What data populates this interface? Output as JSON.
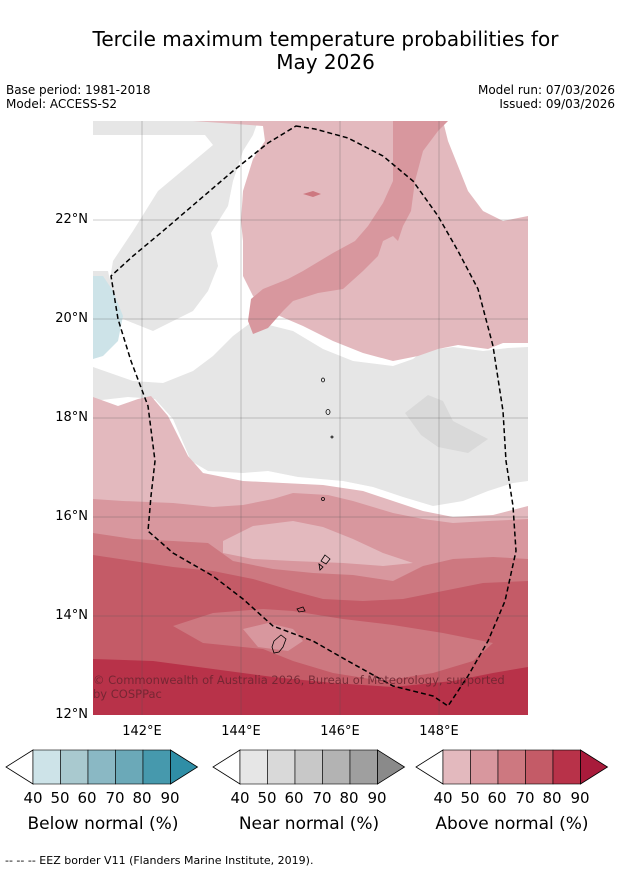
{
  "title": "Tercile maximum temperature probabilities for May 2026",
  "title_line1": "Tercile maximum temperature probabilities for",
  "title_line2": "May 2026",
  "base_period": "Base period: 1981-2018",
  "model": "Model: ACCESS-S2",
  "model_run": "Model run: 07/03/2026",
  "issued": "Issued: 09/03/2026",
  "copyright_line1": "© Commonwealth of Australia 2026, Bureau of Meteorology, supported",
  "copyright_line2": "by COSPPac",
  "lat_ticks": [
    "22°N",
    "20°N",
    "18°N",
    "16°N",
    "14°N",
    "12°N"
  ],
  "lon_ticks": [
    "142°E",
    "144°E",
    "146°E",
    "148°E"
  ],
  "colorbars": [
    {
      "title": "Below normal (%)",
      "labels": [
        "40",
        "50",
        "60",
        "70",
        "80",
        "90"
      ],
      "colors": [
        "#cde3e8",
        "#a9c9cf",
        "#8ab8c4",
        "#6ba9b8",
        "#4699ad",
        "#2f8ea6"
      ]
    },
    {
      "title": "Near normal (%)",
      "labels": [
        "40",
        "50",
        "60",
        "70",
        "80",
        "90"
      ],
      "colors": [
        "#e6e6e6",
        "#d9d9d9",
        "#c8c8c8",
        "#b3b3b3",
        "#9f9f9f",
        "#8a8a8a"
      ]
    },
    {
      "title": "Above normal (%)",
      "labels": [
        "40",
        "50",
        "60",
        "70",
        "80",
        "90"
      ],
      "colors": [
        "#e3b9be",
        "#d8979e",
        "#cd7880",
        "#c45b67",
        "#b83249",
        "#a81b3b"
      ]
    }
  ],
  "footnote": "--  --  -- EEZ border V11 (Flanders Marine Institute, 2019).",
  "colors": {
    "above_40": "#e3b9be",
    "above_50": "#d8979e",
    "above_60": "#cd7880",
    "above_70": "#c45b67",
    "above_80": "#b83249",
    "above_90": "#a81b3b",
    "near_40": "#e6e6e6",
    "near_50": "#d9d9d9",
    "below_40": "#cde3e8"
  }
}
